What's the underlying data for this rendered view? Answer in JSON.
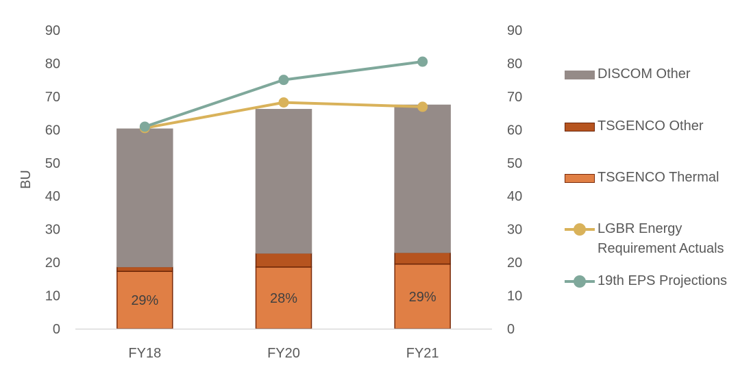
{
  "chart_data": {
    "type": "bar",
    "categories": [
      "FY18",
      "FY20",
      "FY21"
    ],
    "ylabel": "BU",
    "ylim": [
      0,
      90
    ],
    "y_ticks": [
      "0",
      "10",
      "20",
      "30",
      "40",
      "50",
      "60",
      "70",
      "80",
      "90"
    ],
    "y2lim": [
      0,
      90
    ],
    "y2_ticks": [
      "0",
      "10",
      "20",
      "30",
      "40",
      "50",
      "60",
      "70",
      "80",
      "90"
    ],
    "grid": false,
    "legend_position": "right",
    "stacked_series": [
      {
        "name": "TSGENCO Thermal",
        "values": [
          17.3,
          18.6,
          19.5
        ],
        "color": "#E07F45",
        "border": "#7A2A0A",
        "data_labels": [
          "29%",
          "28%",
          "29%"
        ]
      },
      {
        "name": "TSGENCO Other",
        "values": [
          1.4,
          4.2,
          3.5
        ],
        "color": "#B6541F",
        "border": "#6B2508"
      },
      {
        "name": "DISCOM Other",
        "values": [
          41.5,
          43.3,
          44.4
        ],
        "color": "#958B88",
        "border": "#958B88"
      }
    ],
    "line_series": [
      {
        "name": "LGBR Energy Requirement Actuals",
        "values": [
          60.5,
          68.2,
          66.9
        ],
        "color": "#D9B25A"
      },
      {
        "name": "19th EPS Projections",
        "values": [
          60.9,
          75.0,
          80.5
        ],
        "color": "#7FA89B"
      }
    ]
  },
  "legend": [
    {
      "label": "DISCOM Other",
      "kind": "box",
      "color": "#958B88",
      "border": "#958B88"
    },
    {
      "label": "TSGENCO Other",
      "kind": "box",
      "color": "#B6541F",
      "border": "#6B2508"
    },
    {
      "label": "TSGENCO Thermal",
      "kind": "box",
      "color": "#E07F45",
      "border": "#7A2A0A"
    },
    {
      "label": "LGBR Energy Requirement Actuals",
      "kind": "line",
      "color": "#D9B25A"
    },
    {
      "label": "19th EPS Projections",
      "kind": "line",
      "color": "#7FA89B"
    }
  ]
}
